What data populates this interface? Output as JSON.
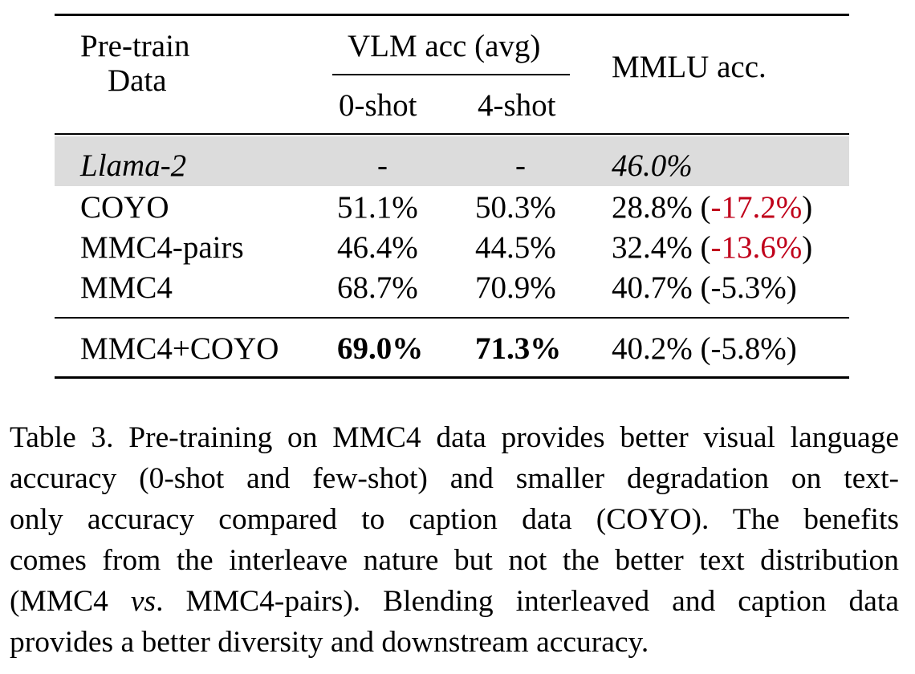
{
  "table": {
    "header": {
      "pretrain_line1": "Pre-train",
      "pretrain_line2": "Data",
      "vlm_group": "VLM acc (avg)",
      "zero_shot": "0-shot",
      "four_shot": "4-shot",
      "mmlu": "MMLU acc."
    },
    "rows": [
      {
        "data": "Llama-2",
        "zero_shot": "-",
        "four_shot": "-",
        "mmlu": "46.0%",
        "delta": ""
      },
      {
        "data": "COYO",
        "zero_shot": "51.1%",
        "four_shot": "50.3%",
        "mmlu": "28.8%",
        "delta": "-17.2%"
      },
      {
        "data": "MMC4-pairs",
        "zero_shot": "46.4%",
        "four_shot": "44.5%",
        "mmlu": "32.4%",
        "delta": "-13.6%"
      },
      {
        "data": "MMC4",
        "zero_shot": "68.7%",
        "four_shot": "70.9%",
        "mmlu": "40.7%",
        "delta": "-5.3%"
      },
      {
        "data": "MMC4+COYO",
        "zero_shot": "69.0%",
        "four_shot": "71.3%",
        "mmlu": "40.2%",
        "delta": "-5.8%"
      }
    ],
    "colors": {
      "highlight_red": "#c0001a",
      "baseline_shade": "#dcdcdc"
    }
  },
  "caption": {
    "line1": "Table 3. Pre-training on MMC4 data provides better visual language",
    "line2": "accuracy (0-shot and few-shot) and smaller degradation on text-",
    "line3": "only accuracy compared to caption data (COYO). The benefits",
    "line4": "comes from the interleave nature but not the better text distribution",
    "line5_a": "(MMC4 ",
    "line5_vs": "vs",
    "line5_b": ". MMC4-pairs). Blending interleaved and caption data",
    "line6": "provides a better diversity and downstream accuracy."
  }
}
